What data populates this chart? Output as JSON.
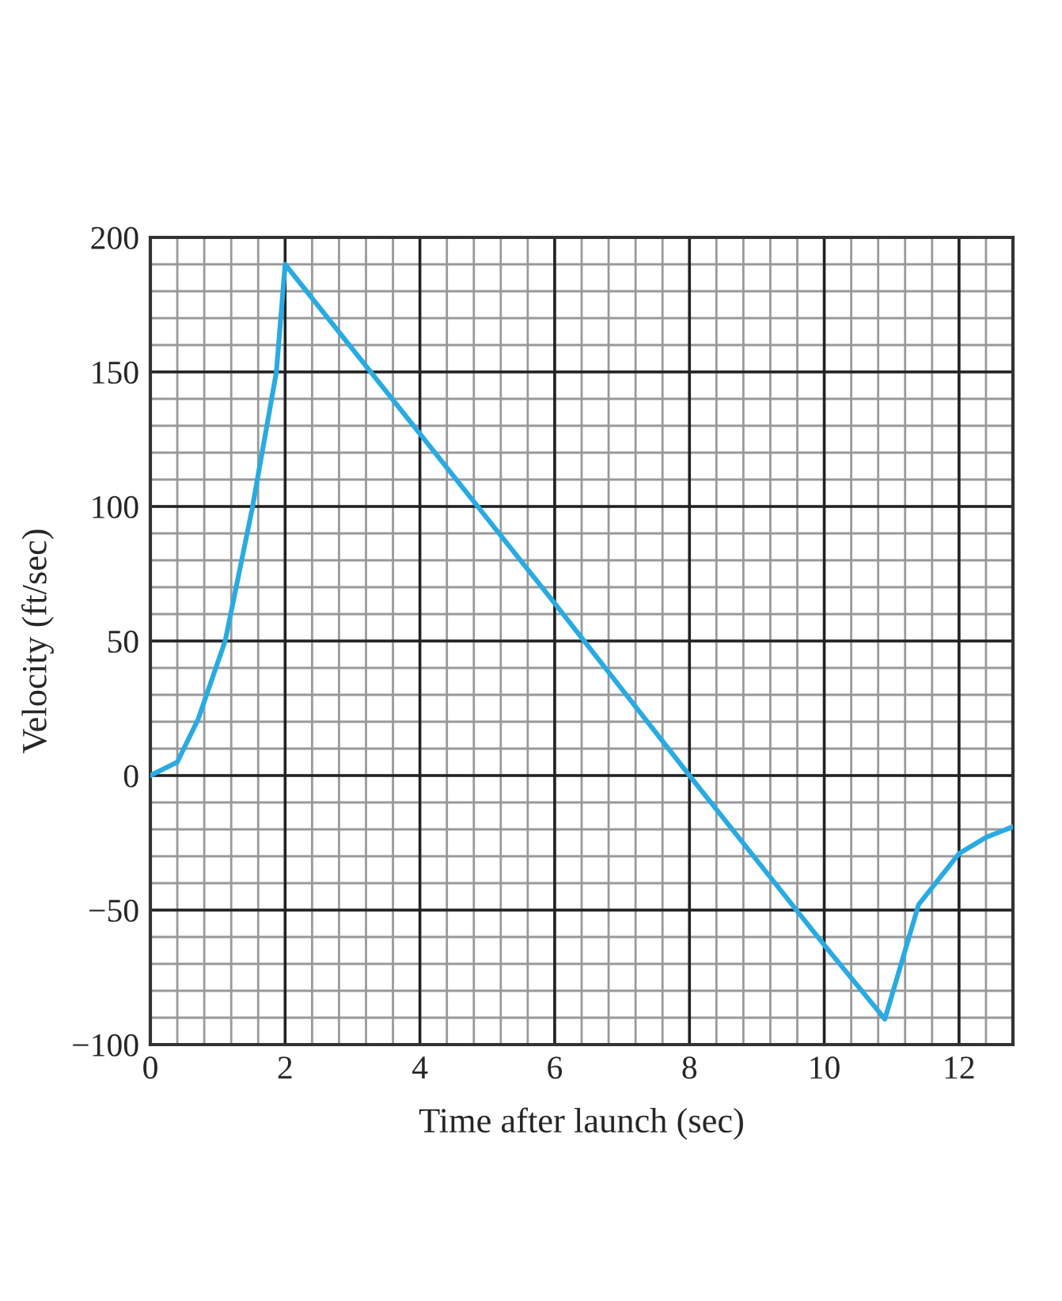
{
  "chart_data": {
    "type": "line",
    "xlabel": "Time after launch (sec)",
    "ylabel": "Velocity (ft/sec)",
    "x": [
      0,
      0.4,
      0.71,
      1.11,
      1.51,
      1.87,
      2,
      4,
      6,
      8,
      10,
      10.9,
      11.4,
      12.0,
      12.4,
      12.8
    ],
    "series": [
      {
        "color": "#29abe2",
        "values": [
          0,
          5,
          21,
          50,
          99,
          150,
          190,
          127,
          64,
          0,
          -63,
          -90.5,
          -48,
          -29,
          -23,
          -19
        ]
      }
    ],
    "xlim": [
      0,
      12.8
    ],
    "xticks": [
      0,
      2,
      4,
      6,
      8,
      10,
      12
    ],
    "ylim": [
      -100,
      200
    ],
    "yticks": [
      -100,
      -50,
      0,
      50,
      100,
      150,
      200
    ],
    "grid": true,
    "legend": false,
    "marker": "none",
    "line_style": "solid"
  }
}
